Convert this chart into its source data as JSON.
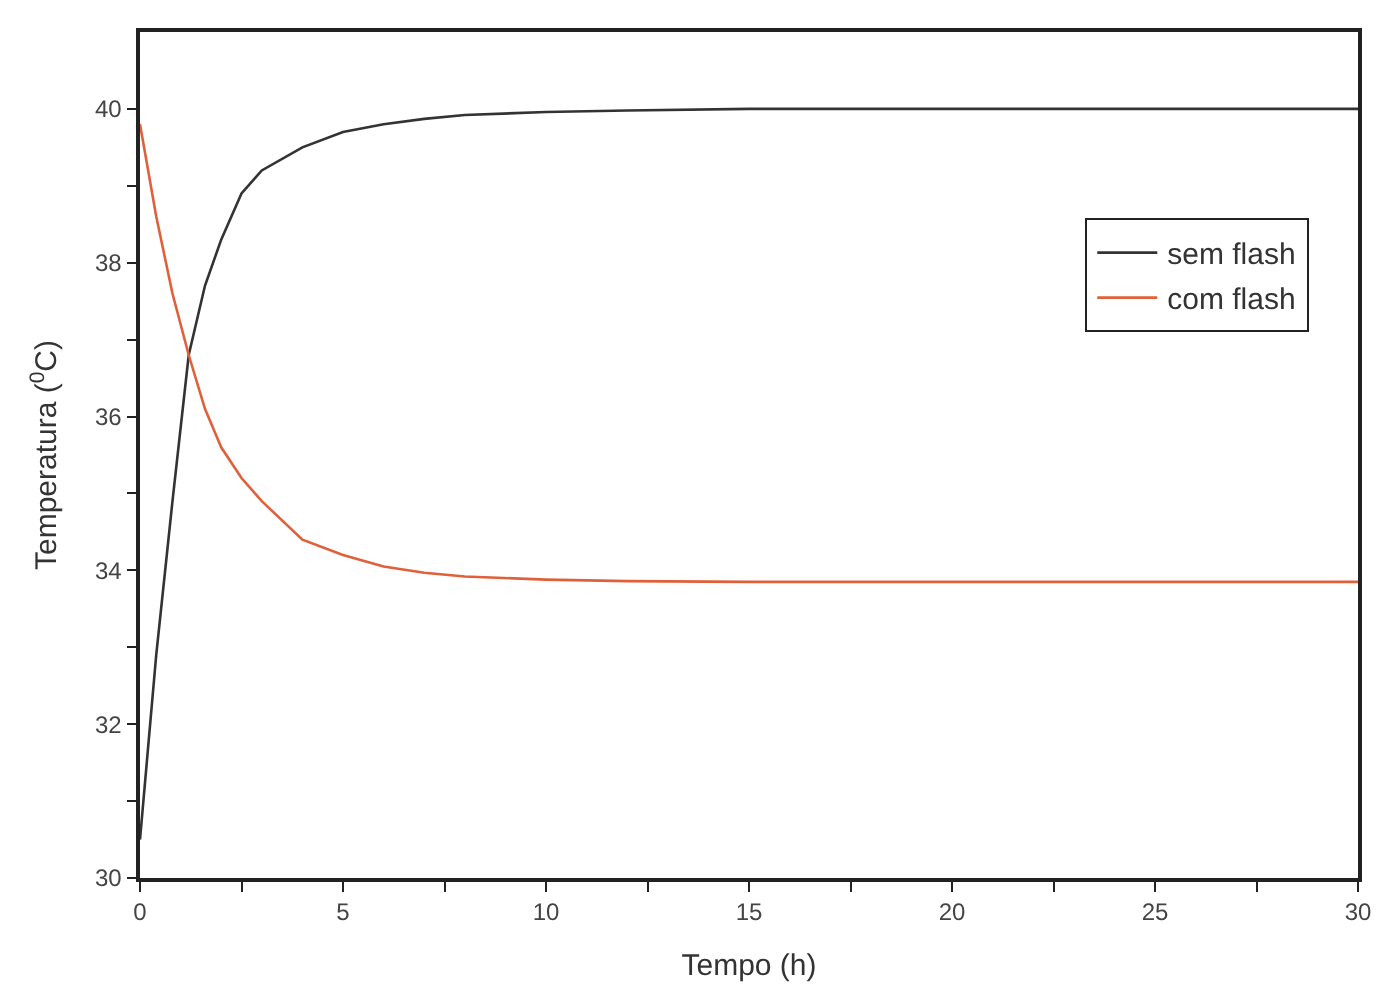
{
  "chart_data": {
    "type": "line",
    "xlabel": "Tempo (h)",
    "ylabel": "Temperatura ($^{0}$C)",
    "x": [
      0,
      0.4,
      0.8,
      1.2,
      1.6,
      2,
      2.5,
      3,
      4,
      5,
      6,
      7,
      8,
      10,
      12,
      15,
      20,
      25,
      30
    ],
    "series": [
      {
        "name": "sem flash",
        "color": "#333333",
        "values": [
          30.5,
          32.9,
          34.9,
          36.8,
          37.7,
          38.3,
          38.9,
          39.2,
          39.5,
          39.7,
          39.8,
          39.87,
          39.92,
          39.96,
          39.98,
          40,
          40,
          40,
          40
        ]
      },
      {
        "name": "com flash",
        "color": "#e0603a",
        "values": [
          39.8,
          38.6,
          37.6,
          36.8,
          36.1,
          35.6,
          35.2,
          34.9,
          34.4,
          34.2,
          34.05,
          33.97,
          33.92,
          33.88,
          33.86,
          33.85,
          33.85,
          33.85,
          33.85
        ]
      }
    ],
    "xlim": [
      0,
      30
    ],
    "ylim": [
      30,
      41
    ],
    "xticks": [
      0,
      {
        "value": 2.5,
        "label": null
      },
      5,
      {
        "value": 7.5,
        "label": null
      },
      10,
      {
        "value": 12.5,
        "label": null
      },
      15,
      {
        "value": 17.5,
        "label": null
      },
      20,
      {
        "value": 22.5,
        "label": null
      },
      25,
      {
        "value": 27.5,
        "label": null
      },
      30
    ],
    "yticks": [
      30,
      {
        "value": 31,
        "label": null
      },
      32,
      {
        "value": 33,
        "label": null
      },
      34,
      {
        "value": 35,
        "label": null
      },
      36,
      {
        "value": 37,
        "label": null
      },
      38,
      {
        "value": 39,
        "label": null
      },
      40
    ],
    "legend": "top right",
    "marker": "none",
    "line_style": "solid"
  }
}
